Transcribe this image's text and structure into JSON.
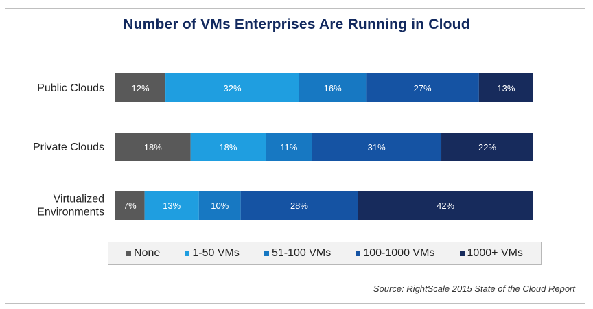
{
  "chart_data": {
    "type": "bar",
    "orientation": "horizontal",
    "stacked": "100%",
    "title": "Number of VMs Enterprises Are Running in Cloud",
    "categories": [
      "Public Clouds",
      "Private Clouds",
      "Virtualized Environments"
    ],
    "category_lines": [
      [
        "Public Clouds"
      ],
      [
        "Private Clouds"
      ],
      [
        "Virtualized",
        "Environments"
      ]
    ],
    "series": [
      {
        "name": "None",
        "color": "#595959",
        "values": [
          12,
          18,
          7
        ]
      },
      {
        "name": "1-50 VMs",
        "color": "#1f9ee0",
        "values": [
          32,
          18,
          13
        ]
      },
      {
        "name": "51-100 VMs",
        "color": "#1778c2",
        "values": [
          16,
          11,
          10
        ]
      },
      {
        "name": "100-1000 VMs",
        "color": "#1553a3",
        "values": [
          27,
          31,
          28
        ]
      },
      {
        "name": "1000+ VMs",
        "color": "#172b5c",
        "values": [
          13,
          22,
          42
        ]
      }
    ],
    "value_suffix": "%",
    "legend_position": "bottom",
    "grid": false,
    "source": "Source: RightScale 2015 State of the Cloud Report"
  }
}
